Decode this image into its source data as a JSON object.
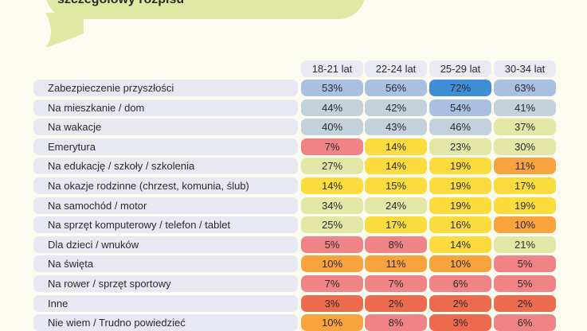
{
  "title": "szczegółowy rozpisu",
  "chart_data": {
    "type": "table",
    "columns": [
      "18-21 lat",
      "22-24 lat",
      "25-29 lat",
      "30-34 lat"
    ],
    "rows": [
      {
        "label": "Zabezpieczenie przyszłości",
        "values": [
          "53%",
          "56%",
          "72%",
          "63%"
        ],
        "colors": [
          "#a9c0e3",
          "#a9c0e3",
          "#3f8fd8",
          "#a9c0e3"
        ]
      },
      {
        "label": "Na mieszkanie / dom",
        "values": [
          "44%",
          "42%",
          "54%",
          "41%"
        ],
        "colors": [
          "#c3d1dd",
          "#c3d1dd",
          "#a9c0e3",
          "#c3d1dd"
        ]
      },
      {
        "label": "Na wakacje",
        "values": [
          "40%",
          "43%",
          "46%",
          "37%"
        ],
        "colors": [
          "#c3d1dd",
          "#c3d1dd",
          "#c3d1dd",
          "#e3e7a6"
        ]
      },
      {
        "label": "Emerytura",
        "values": [
          "7%",
          "14%",
          "23%",
          "30%"
        ],
        "colors": [
          "#f08385",
          "#fcdc3c",
          "#e3e7a6",
          "#e3e7a6"
        ]
      },
      {
        "label": "Na edukację / szkoły / szkolenia",
        "values": [
          "27%",
          "14%",
          "19%",
          "11%"
        ],
        "colors": [
          "#e3e7a6",
          "#fcdc3c",
          "#fcdc3c",
          "#f7a33e"
        ]
      },
      {
        "label": "Na okazje rodzinne (chrzest, komunia, ślub)",
        "values": [
          "14%",
          "15%",
          "19%",
          "17%"
        ],
        "colors": [
          "#fcdc3c",
          "#fcdc3c",
          "#fcdc3c",
          "#fcdc3c"
        ]
      },
      {
        "label": "Na samochód / motor",
        "values": [
          "34%",
          "24%",
          "19%",
          "19%"
        ],
        "colors": [
          "#e3e7a6",
          "#e3e7a6",
          "#fcdc3c",
          "#fcdc3c"
        ]
      },
      {
        "label": "Na sprzęt komputerowy / telefon / tablet",
        "values": [
          "25%",
          "17%",
          "16%",
          "10%"
        ],
        "colors": [
          "#e3e7a6",
          "#fcdc3c",
          "#fcdc3c",
          "#f7a33e"
        ]
      },
      {
        "label": "Dla dzieci / wnuków",
        "values": [
          "5%",
          "8%",
          "14%",
          "21%"
        ],
        "colors": [
          "#f08385",
          "#f08385",
          "#fcdc3c",
          "#e3e7a6"
        ]
      },
      {
        "label": "Na święta",
        "values": [
          "10%",
          "11%",
          "10%",
          "5%"
        ],
        "colors": [
          "#f7a33e",
          "#f7a33e",
          "#f7a33e",
          "#f08385"
        ]
      },
      {
        "label": "Na rower / sprzęt sportowy",
        "values": [
          "7%",
          "7%",
          "6%",
          "5%"
        ],
        "colors": [
          "#f08385",
          "#f08385",
          "#f08385",
          "#f08385"
        ]
      },
      {
        "label": "Inne",
        "values": [
          "3%",
          "2%",
          "2%",
          "2%"
        ],
        "colors": [
          "#ec6a4e",
          "#ec6a4e",
          "#ec6a4e",
          "#ec6a4e"
        ]
      },
      {
        "label": "Nie wiem / Trudno powiedzieć",
        "values": [
          "10%",
          "8%",
          "3%",
          "6%"
        ],
        "colors": [
          "#f7a33e",
          "#f08385",
          "#ec6a4e",
          "#f08385"
        ]
      }
    ]
  }
}
